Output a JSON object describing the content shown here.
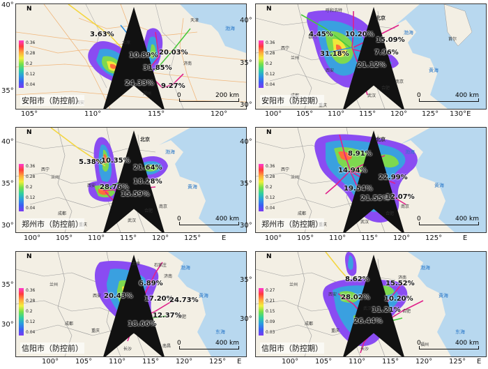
{
  "panels": [
    {
      "id": "p1",
      "title": "安阳市（防控前）",
      "scale": "200 km",
      "north": "N",
      "legend": [
        "0.36",
        "0.28",
        "0.2",
        "0.12",
        "0.04"
      ],
      "x_ticks": [
        "105°",
        "110°",
        "115°",
        "120°"
      ],
      "y_ticks": [
        "40°",
        "35°"
      ],
      "percents": [
        "3.63%",
        "10.89%",
        "20.03%",
        "31.85%",
        "24.33%",
        "9.27%"
      ],
      "cities": [
        "天津",
        "太原",
        "济南",
        "郑州",
        "西安"
      ],
      "seas": [
        "渤海"
      ]
    },
    {
      "id": "p2",
      "title": "安阳市（防控期）",
      "scale": "400 km",
      "north": "N",
      "legend": [
        "0.36",
        "0.28",
        "0.2",
        "0.12",
        "0.04"
      ],
      "x_ticks": [
        "100°",
        "105°",
        "110°",
        "115°",
        "120°",
        "125°",
        "130°E"
      ],
      "y_ticks": [
        "40°",
        "35°",
        "30°"
      ],
      "percents": [
        "4.45%",
        "10.20%",
        "31.18%",
        "15.09%",
        "7.96%",
        "21.12%"
      ],
      "cities": [
        "北京",
        "呼和浩特",
        "西宁",
        "兰州",
        "银川",
        "西安",
        "成都",
        "重庆",
        "合肥",
        "南京",
        "武汉",
        "首尔"
      ],
      "seas": [
        "渤海",
        "黄海"
      ]
    },
    {
      "id": "p3",
      "title": "郑州市（防控前）",
      "scale": "400 km",
      "north": "N",
      "legend": [
        "0.36",
        "0.28",
        "0.2",
        "0.12",
        "0.04"
      ],
      "x_ticks": [
        "100°",
        "105°",
        "110°",
        "115°",
        "120°",
        "125°",
        "E"
      ],
      "y_ticks": [
        "40°",
        "35°",
        "30°"
      ],
      "percents": [
        "5.38%",
        "10.35%",
        "21.64%",
        "28.76%",
        "18.28%",
        "15.59%"
      ],
      "cities": [
        "北京",
        "西宁",
        "兰州",
        "西安",
        "成都",
        "重庆",
        "武汉",
        "合肥",
        "南京"
      ],
      "seas": [
        "渤海",
        "黄海"
      ]
    },
    {
      "id": "p4",
      "title": "郑州市（防控期）",
      "scale": "400 km",
      "north": "N",
      "legend": [
        "0.36",
        "0.28",
        "0.2",
        "0.12",
        "0.04"
      ],
      "x_ticks": [
        "100°",
        "105°",
        "110°",
        "115°",
        "120°",
        "125°",
        "E"
      ],
      "y_ticks": [
        "40°",
        "35°",
        "30°"
      ],
      "percents": [
        "8.91%",
        "14.94%",
        "22.99%",
        "19.54%",
        "21.55%",
        "12.07%"
      ],
      "cities": [
        "北京",
        "西宁",
        "兰州",
        "成都",
        "重庆",
        "武汉",
        "合肥",
        "南京"
      ],
      "seas": [
        "渤海",
        "黄海"
      ]
    },
    {
      "id": "p5",
      "title": "信阳市（防控前）",
      "scale": "400 km",
      "north": "N",
      "legend": [
        "0.36",
        "0.28",
        "0.2",
        "0.12",
        "0.04"
      ],
      "x_ticks": [
        "100°",
        "105°",
        "110°",
        "115°",
        "120°",
        "125°",
        "E"
      ],
      "y_ticks": [
        "35°",
        "30°"
      ],
      "percents": [
        "6.89%",
        "20.43%",
        "17.20%",
        "24.73%",
        "12.37%",
        "18.66%"
      ],
      "cities": [
        "太原",
        "石家庄",
        "济南",
        "西安",
        "兰州",
        "成都",
        "重庆",
        "长沙",
        "南昌",
        "合肥"
      ],
      "seas": [
        "渤海",
        "黄海",
        "东海"
      ]
    },
    {
      "id": "p6",
      "title": "信阳市（防控期）",
      "scale": "400 km",
      "north": "N",
      "legend": [
        "0.27",
        "0.21",
        "0.15",
        "0.09",
        "0.03"
      ],
      "x_ticks": [
        "100°",
        "105°",
        "110°",
        "115°",
        "120°",
        "125°",
        "E"
      ],
      "y_ticks": [
        "35°",
        "30°"
      ],
      "percents": [
        "8.62%",
        "15.52%",
        "28.02%",
        "10.20%",
        "11.21%",
        "26.44%"
      ],
      "cities": [
        "济南",
        "西安",
        "兰州",
        "成都",
        "重庆",
        "武汉",
        "合肥",
        "长沙",
        "福州"
      ],
      "seas": [
        "渤海",
        "黄海",
        "东海"
      ]
    }
  ]
}
